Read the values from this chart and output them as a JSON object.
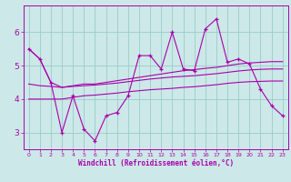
{
  "x": [
    0,
    1,
    2,
    3,
    4,
    5,
    6,
    7,
    8,
    9,
    10,
    11,
    12,
    13,
    14,
    15,
    16,
    17,
    18,
    19,
    20,
    21,
    22,
    23
  ],
  "line_spiky": [
    5.5,
    5.2,
    4.5,
    3.0,
    4.1,
    3.1,
    2.75,
    3.5,
    3.6,
    4.1,
    5.3,
    5.3,
    4.9,
    6.0,
    4.9,
    4.85,
    6.1,
    6.4,
    5.1,
    5.2,
    5.05,
    4.3,
    3.8,
    3.5
  ],
  "line_top": [
    5.5,
    5.2,
    4.5,
    4.35,
    4.4,
    4.45,
    4.45,
    4.5,
    4.55,
    4.6,
    4.65,
    4.7,
    4.75,
    4.8,
    4.85,
    4.88,
    4.92,
    4.95,
    5.0,
    5.05,
    5.08,
    5.1,
    5.12,
    5.12
  ],
  "line_mid": [
    4.45,
    4.4,
    4.38,
    4.35,
    4.38,
    4.4,
    4.42,
    4.45,
    4.48,
    4.52,
    4.56,
    4.6,
    4.63,
    4.66,
    4.68,
    4.7,
    4.73,
    4.76,
    4.8,
    4.84,
    4.87,
    4.89,
    4.9,
    4.9
  ],
  "line_bot": [
    4.0,
    4.0,
    4.0,
    4.0,
    4.05,
    4.1,
    4.12,
    4.15,
    4.18,
    4.22,
    4.25,
    4.28,
    4.3,
    4.32,
    4.35,
    4.37,
    4.4,
    4.43,
    4.47,
    4.5,
    4.52,
    4.53,
    4.54,
    4.54
  ],
  "ylim": [
    2.5,
    6.8
  ],
  "xlim_min": -0.5,
  "xlim_max": 23.5,
  "yticks": [
    3,
    4,
    5,
    6
  ],
  "xticks": [
    0,
    1,
    2,
    3,
    4,
    5,
    6,
    7,
    8,
    9,
    10,
    11,
    12,
    13,
    14,
    15,
    16,
    17,
    18,
    19,
    20,
    21,
    22,
    23
  ],
  "xlabel": "Windchill (Refroidissement éolien,°C)",
  "bg_color": "#cce8e8",
  "line_color": "#aa00aa",
  "grid_color": "#99cccc",
  "tick_color": "#aa00aa",
  "spine_color": "#aa00aa"
}
